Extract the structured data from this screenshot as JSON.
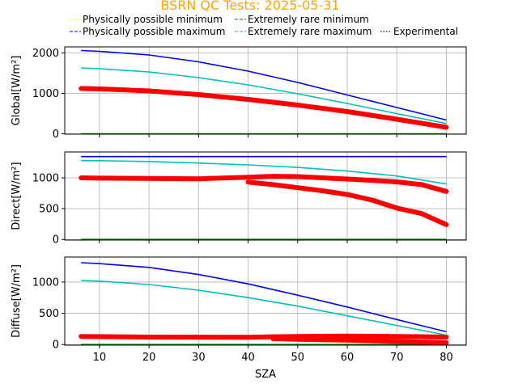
{
  "title": "BSRN QC Tests: 2025-05-31",
  "colors": {
    "title": "#ffa500",
    "phys_min": "#ffff00",
    "phys_max": "#0000ff",
    "rare_min": "#008000",
    "rare_max": "#00bfbf",
    "experimental": "#ff0000"
  },
  "legend": [
    {
      "key": "phys_min",
      "label": "Physically possible minimum",
      "style": "dashed"
    },
    {
      "key": "phys_max",
      "label": "Physically possible maximum",
      "style": "dashed"
    },
    {
      "key": "rare_min",
      "label": "Extremely rare minimum",
      "style": "dashed"
    },
    {
      "key": "rare_max",
      "label": "Extremely rare maximum",
      "style": "dashed"
    },
    {
      "key": "experimental",
      "label": "Experimental",
      "style": "dotted"
    }
  ],
  "chart_data": [
    {
      "type": "line",
      "panel": "global",
      "ylabel": "Global[W/m²]",
      "xlabel": "",
      "xlim": [
        3,
        84
      ],
      "ylim": [
        -10,
        2150
      ],
      "yticks": [
        0,
        1000,
        2000
      ],
      "xticks": [
        10,
        20,
        30,
        40,
        50,
        60,
        70,
        80
      ],
      "show_xticklabels": false,
      "grid": true,
      "series": [
        {
          "name": "Physically possible maximum",
          "key": "phys_max",
          "x": [
            6.3,
            10,
            20,
            30,
            40,
            50,
            60,
            70,
            80
          ],
          "y": [
            2060,
            2040,
            1950,
            1780,
            1550,
            1270,
            960,
            650,
            340
          ]
        },
        {
          "name": "Extremely rare maximum",
          "key": "rare_max",
          "x": [
            6.3,
            10,
            20,
            30,
            40,
            50,
            60,
            70,
            80
          ],
          "y": [
            1630,
            1610,
            1530,
            1390,
            1210,
            990,
            750,
            500,
            255
          ]
        },
        {
          "name": "Extremely rare minimum",
          "key": "rare_min",
          "x": [
            6.3,
            80
          ],
          "y": [
            0,
            0
          ]
        },
        {
          "name": "Physically possible minimum",
          "key": "phys_min",
          "x": [
            6.3,
            80
          ],
          "y": [
            -4,
            -4
          ]
        },
        {
          "name": "Experimental",
          "key": "experimental",
          "band": [
            {
              "x": [
                6.3,
                10,
                20,
                30,
                40,
                50,
                60,
                70,
                80
              ],
              "y": [
                1120,
                1110,
                1060,
                970,
                850,
                710,
                550,
                360,
                160
              ]
            }
          ]
        }
      ]
    },
    {
      "type": "line",
      "panel": "direct",
      "ylabel": "Direct[W/m²]",
      "xlabel": "",
      "xlim": [
        3,
        84
      ],
      "ylim": [
        -10,
        1420
      ],
      "yticks": [
        0,
        500,
        1000
      ],
      "xticks": [
        10,
        20,
        30,
        40,
        50,
        60,
        70,
        80
      ],
      "show_xticklabels": false,
      "grid": true,
      "series": [
        {
          "name": "Physically possible maximum",
          "key": "phys_max",
          "x": [
            6.3,
            80
          ],
          "y": [
            1345,
            1345
          ]
        },
        {
          "name": "Extremely rare maximum",
          "key": "rare_max",
          "x": [
            6.3,
            10,
            20,
            30,
            40,
            50,
            60,
            70,
            80
          ],
          "y": [
            1280,
            1278,
            1265,
            1240,
            1210,
            1170,
            1110,
            1030,
            900
          ]
        },
        {
          "name": "Extremely rare minimum",
          "key": "rare_min",
          "x": [
            6.3,
            80
          ],
          "y": [
            0,
            0
          ]
        },
        {
          "name": "Experimental",
          "key": "experimental",
          "band": [
            {
              "x": [
                6.3,
                10,
                20,
                30,
                40,
                45,
                50,
                55,
                60,
                65,
                70,
                75,
                80
              ],
              "y": [
                1000,
                995,
                990,
                985,
                1010,
                1025,
                1020,
                1000,
                980,
                960,
                935,
                890,
                780
              ]
            },
            {
              "x": [
                40,
                45,
                50,
                55,
                60,
                65,
                70,
                75,
                80
              ],
              "y": [
                930,
                890,
                840,
                790,
                730,
                640,
                510,
                420,
                240
              ]
            }
          ]
        }
      ]
    },
    {
      "type": "line",
      "panel": "diffuse",
      "ylabel": "Diffuse[W/m²]",
      "xlabel": "SZA",
      "xlim": [
        3,
        84
      ],
      "ylim": [
        -10,
        1400
      ],
      "yticks": [
        0,
        500,
        1000
      ],
      "xticks": [
        10,
        20,
        30,
        40,
        50,
        60,
        70,
        80
      ],
      "show_xticklabels": true,
      "grid": true,
      "series": [
        {
          "name": "Physically possible maximum",
          "key": "phys_max",
          "x": [
            6.3,
            10,
            20,
            30,
            40,
            50,
            60,
            70,
            80
          ],
          "y": [
            1310,
            1295,
            1235,
            1120,
            970,
            790,
            600,
            400,
            205
          ]
        },
        {
          "name": "Extremely rare maximum",
          "key": "rare_max",
          "x": [
            6.3,
            10,
            20,
            30,
            40,
            50,
            60,
            70,
            80
          ],
          "y": [
            1025,
            1015,
            960,
            870,
            750,
            615,
            460,
            305,
            150
          ]
        },
        {
          "name": "Extremely rare minimum",
          "key": "rare_min",
          "x": [
            6.3,
            80
          ],
          "y": [
            0,
            0
          ]
        },
        {
          "name": "Experimental",
          "key": "experimental",
          "band": [
            {
              "x": [
                6.3,
                20,
                40,
                45,
                50,
                60,
                70,
                80
              ],
              "y": [
                130,
                120,
                115,
                125,
                130,
                135,
                130,
                120
              ]
            },
            {
              "x": [
                45,
                50,
                60,
                70,
                80
              ],
              "y": [
                95,
                85,
                70,
                50,
                30
              ]
            }
          ]
        }
      ]
    }
  ]
}
